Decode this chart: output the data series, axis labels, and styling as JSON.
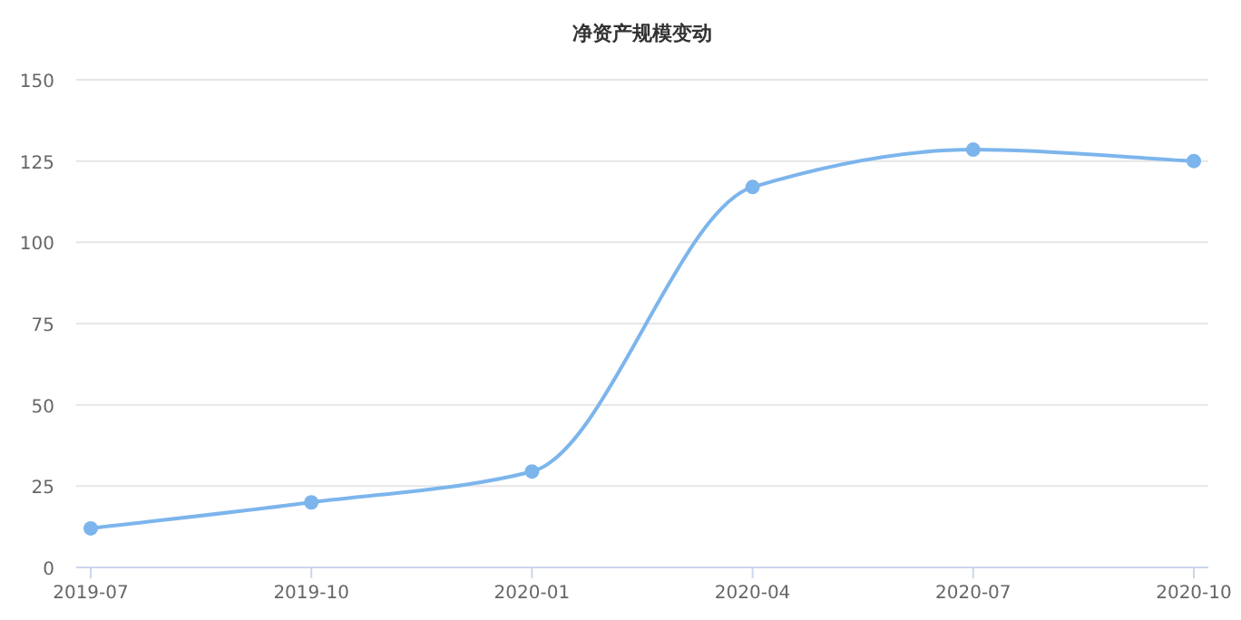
{
  "chart_data": {
    "type": "line",
    "title": "净资产规模变动",
    "categories": [
      "2019-07",
      "2019-10",
      "2020-01",
      "2020-04",
      "2020-07",
      "2020-10"
    ],
    "series": [
      {
        "color": "#7cb5ec",
        "values": [
          12,
          20,
          29.5,
          117,
          128.5,
          125
        ]
      }
    ],
    "ylim": [
      0,
      150
    ],
    "yticks": [
      0,
      25,
      50,
      75,
      100,
      125,
      150
    ],
    "grid": "y",
    "marker": "circle"
  }
}
